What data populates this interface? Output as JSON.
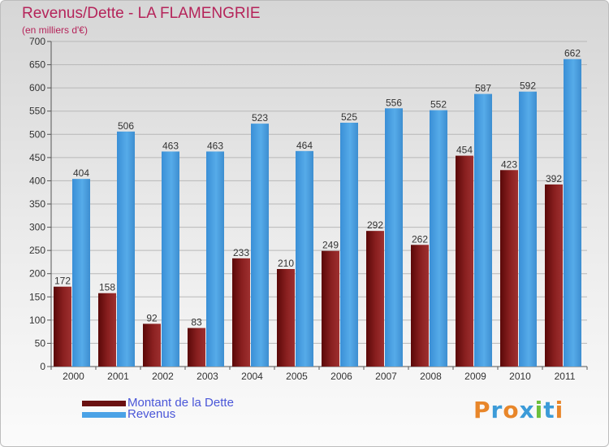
{
  "chart_data": {
    "type": "bar",
    "title": "Revenus/Dette - LA FLAMENGRIE",
    "subtitle": "(en milliers d'€)",
    "categories": [
      "2000",
      "2001",
      "2002",
      "2003",
      "2004",
      "2005",
      "2006",
      "2007",
      "2008",
      "2009",
      "2010",
      "2011"
    ],
    "series": [
      {
        "name": "Montant de la Dette",
        "color": "#7a1414",
        "values": [
          172,
          158,
          92,
          83,
          233,
          210,
          249,
          292,
          262,
          454,
          423,
          392
        ]
      },
      {
        "name": "Revenus",
        "color": "#4aa2e6",
        "values": [
          404,
          506,
          463,
          463,
          523,
          464,
          525,
          556,
          552,
          587,
          592,
          662
        ]
      }
    ],
    "ylim": [
      0,
      700
    ],
    "yticks": [
      0,
      50,
      100,
      150,
      200,
      250,
      300,
      350,
      400,
      450,
      500,
      550,
      600,
      650,
      700
    ],
    "grid": true,
    "legend": "bottom-left"
  },
  "logo": {
    "letters": [
      {
        "ch": "P",
        "color": "#e8862a"
      },
      {
        "ch": "r",
        "color": "#3c9bd8"
      },
      {
        "ch": "o",
        "color": "#e8862a"
      },
      {
        "ch": "x",
        "color": "#3c9bd8"
      },
      {
        "ch": "i",
        "color": "#6cbf3c"
      },
      {
        "ch": "t",
        "color": "#3c9bd8"
      },
      {
        "ch": "i",
        "color": "#e8862a"
      }
    ]
  }
}
